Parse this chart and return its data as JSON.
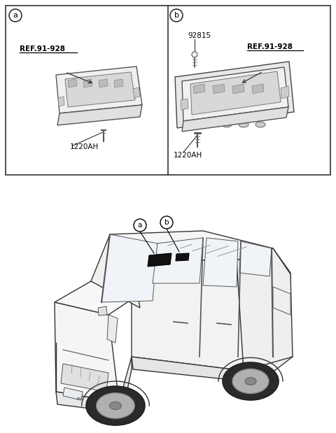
{
  "bg_color": "#ffffff",
  "panel_a_label": "a",
  "panel_b_label": "b",
  "panel_a_ref": "REF.91-928",
  "panel_b_ref": "REF.91-928",
  "panel_a_part": "1220AH",
  "panel_b_part": "1220AH",
  "panel_b_extra": "92815",
  "car_label_a": "a",
  "car_label_b": "b"
}
